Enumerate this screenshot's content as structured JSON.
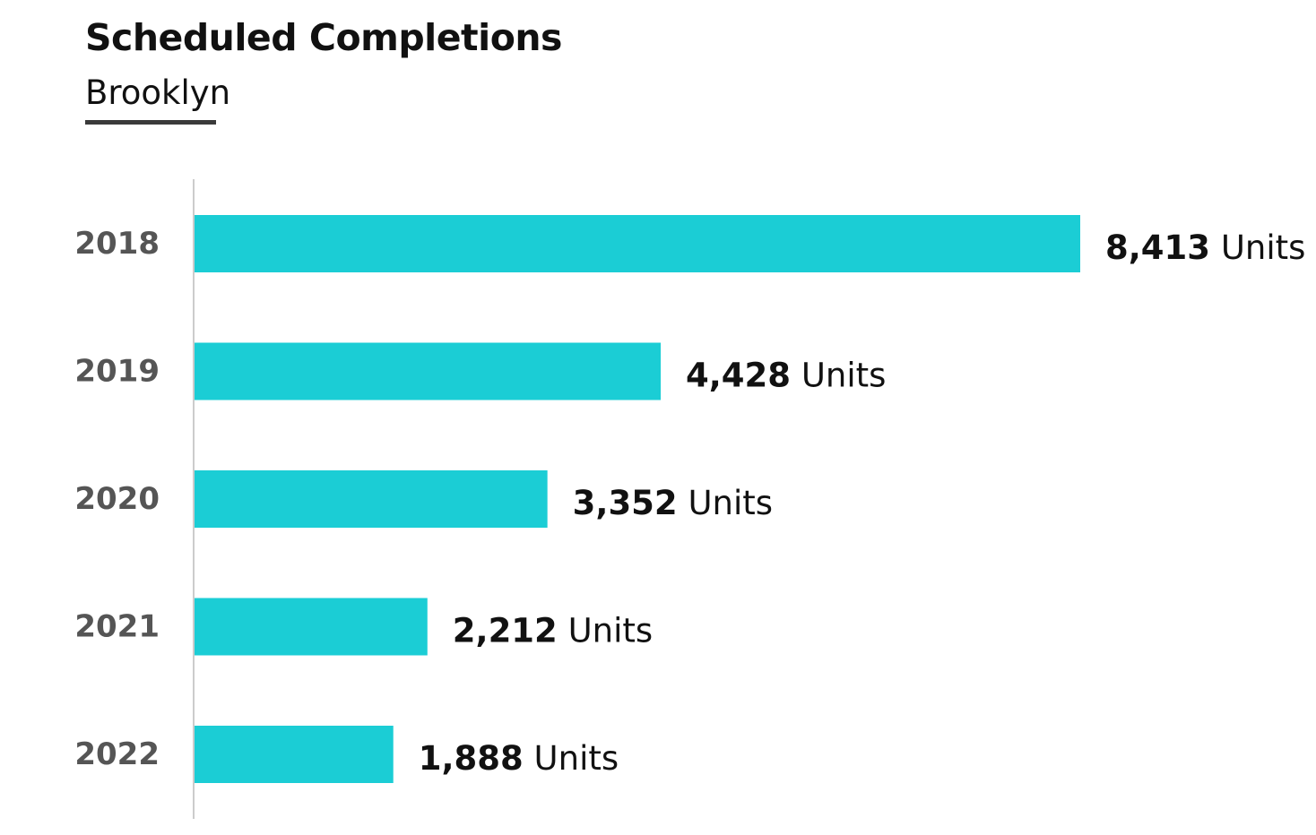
{
  "title": "Scheduled Completions",
  "subtitle": "Brooklyn",
  "colors": {
    "bar": "#1bcdd5",
    "axis": "#cccccc",
    "category_text": "#555555",
    "title_text": "#111111",
    "subtitle_rule": "#3a3a3a"
  },
  "chart_data": {
    "type": "bar",
    "orientation": "horizontal",
    "title": "Scheduled Completions",
    "subtitle": "Brooklyn",
    "categories": [
      "2018",
      "2019",
      "2020",
      "2021",
      "2022"
    ],
    "values": [
      8413,
      4428,
      3352,
      2212,
      1888
    ],
    "value_labels": [
      "8,413",
      "4,428",
      "3,352",
      "2,212",
      "1,888"
    ],
    "value_suffix": "Units",
    "xlabel": "",
    "ylabel": "",
    "xlim": [
      0,
      8413
    ],
    "grid": false,
    "legend": "none"
  }
}
